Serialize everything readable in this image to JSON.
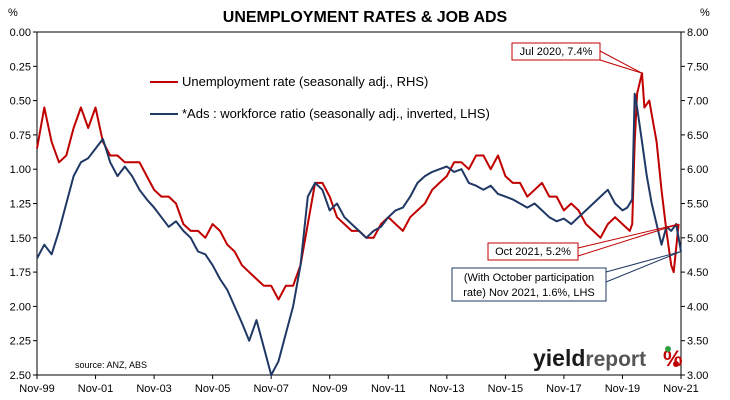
{
  "chart_data": {
    "type": "line",
    "title": "UNEMPLOYMENT RATES & JOB ADS",
    "left_unit": "%",
    "right_unit": "%",
    "x_ticks": [
      "Nov-99",
      "Nov-01",
      "Nov-03",
      "Nov-05",
      "Nov-07",
      "Nov-09",
      "Nov-11",
      "Nov-13",
      "Nov-15",
      "Nov-17",
      "Nov-19",
      "Nov-21"
    ],
    "y_left_ticks": [
      "0.00",
      "0.25",
      "0.50",
      "0.75",
      "1.00",
      "1.25",
      "1.50",
      "1.75",
      "2.00",
      "2.25",
      "2.50"
    ],
    "y_right_ticks": [
      "8.00",
      "7.50",
      "7.00",
      "6.50",
      "6.00",
      "5.50",
      "5.00",
      "4.50",
      "4.00",
      "3.50",
      "3.00"
    ],
    "y_left_range": [
      0.0,
      2.5
    ],
    "y_left_inverted": true,
    "y_right_range": [
      3.0,
      8.0
    ],
    "series": [
      {
        "name": "Unemployment rate (seasonally adj., RHS)",
        "axis": "right",
        "color": "#c00000",
        "points": [
          [
            "1999-11",
            6.3
          ],
          [
            "2000-02",
            6.9
          ],
          [
            "2000-05",
            6.4
          ],
          [
            "2000-08",
            6.1
          ],
          [
            "2000-11",
            6.2
          ],
          [
            "2001-02",
            6.6
          ],
          [
            "2001-05",
            6.9
          ],
          [
            "2001-08",
            6.6
          ],
          [
            "2001-11",
            6.9
          ],
          [
            "2002-02",
            6.4
          ],
          [
            "2002-05",
            6.2
          ],
          [
            "2002-08",
            6.2
          ],
          [
            "2002-11",
            6.1
          ],
          [
            "2003-02",
            6.1
          ],
          [
            "2003-05",
            6.1
          ],
          [
            "2003-08",
            5.9
          ],
          [
            "2003-11",
            5.7
          ],
          [
            "2004-02",
            5.6
          ],
          [
            "2004-05",
            5.6
          ],
          [
            "2004-08",
            5.5
          ],
          [
            "2004-11",
            5.2
          ],
          [
            "2005-02",
            5.1
          ],
          [
            "2005-05",
            5.1
          ],
          [
            "2005-08",
            5.0
          ],
          [
            "2005-11",
            5.2
          ],
          [
            "2006-02",
            5.1
          ],
          [
            "2006-05",
            4.9
          ],
          [
            "2006-08",
            4.8
          ],
          [
            "2006-11",
            4.6
          ],
          [
            "2007-02",
            4.5
          ],
          [
            "2007-05",
            4.4
          ],
          [
            "2007-08",
            4.3
          ],
          [
            "2007-11",
            4.3
          ],
          [
            "2008-02",
            4.1
          ],
          [
            "2008-05",
            4.3
          ],
          [
            "2008-08",
            4.3
          ],
          [
            "2008-11",
            4.6
          ],
          [
            "2009-02",
            5.2
          ],
          [
            "2009-05",
            5.8
          ],
          [
            "2009-08",
            5.8
          ],
          [
            "2009-11",
            5.6
          ],
          [
            "2010-02",
            5.3
          ],
          [
            "2010-05",
            5.2
          ],
          [
            "2010-08",
            5.1
          ],
          [
            "2010-11",
            5.1
          ],
          [
            "2011-02",
            5.0
          ],
          [
            "2011-05",
            5.0
          ],
          [
            "2011-08",
            5.2
          ],
          [
            "2011-11",
            5.3
          ],
          [
            "2012-02",
            5.2
          ],
          [
            "2012-05",
            5.1
          ],
          [
            "2012-08",
            5.3
          ],
          [
            "2012-11",
            5.4
          ],
          [
            "2013-02",
            5.5
          ],
          [
            "2013-05",
            5.7
          ],
          [
            "2013-08",
            5.8
          ],
          [
            "2013-11",
            5.9
          ],
          [
            "2014-02",
            6.1
          ],
          [
            "2014-05",
            6.1
          ],
          [
            "2014-08",
            6.0
          ],
          [
            "2014-11",
            6.2
          ],
          [
            "2015-02",
            6.2
          ],
          [
            "2015-05",
            6.0
          ],
          [
            "2015-08",
            6.2
          ],
          [
            "2015-11",
            5.9
          ],
          [
            "2016-02",
            5.8
          ],
          [
            "2016-05",
            5.8
          ],
          [
            "2016-08",
            5.6
          ],
          [
            "2016-11",
            5.7
          ],
          [
            "2017-02",
            5.8
          ],
          [
            "2017-05",
            5.6
          ],
          [
            "2017-08",
            5.6
          ],
          [
            "2017-11",
            5.4
          ],
          [
            "2018-02",
            5.5
          ],
          [
            "2018-05",
            5.4
          ],
          [
            "2018-08",
            5.2
          ],
          [
            "2018-11",
            5.1
          ],
          [
            "2019-02",
            5.0
          ],
          [
            "2019-05",
            5.2
          ],
          [
            "2019-08",
            5.3
          ],
          [
            "2019-11",
            5.2
          ],
          [
            "2020-02",
            5.1
          ],
          [
            "2020-03",
            5.2
          ],
          [
            "2020-04",
            6.4
          ],
          [
            "2020-05",
            7.1
          ],
          [
            "2020-07",
            7.4
          ],
          [
            "2020-08",
            6.9
          ],
          [
            "2020-10",
            7.0
          ],
          [
            "2020-11",
            6.8
          ],
          [
            "2021-01",
            6.4
          ],
          [
            "2021-03",
            5.7
          ],
          [
            "2021-05",
            5.1
          ],
          [
            "2021-07",
            4.6
          ],
          [
            "2021-08",
            4.5
          ],
          [
            "2021-10",
            5.2
          ]
        ]
      },
      {
        "name": "*Ads : workforce ratio (seasonally adj., inverted, LHS)",
        "axis": "left",
        "color": "#1f3864",
        "points": [
          [
            "1999-11",
            1.65
          ],
          [
            "2000-02",
            1.55
          ],
          [
            "2000-05",
            1.62
          ],
          [
            "2000-08",
            1.45
          ],
          [
            "2000-11",
            1.25
          ],
          [
            "2001-02",
            1.05
          ],
          [
            "2001-05",
            0.95
          ],
          [
            "2001-08",
            0.92
          ],
          [
            "2001-11",
            0.85
          ],
          [
            "2002-02",
            0.78
          ],
          [
            "2002-05",
            0.95
          ],
          [
            "2002-08",
            1.05
          ],
          [
            "2002-11",
            0.98
          ],
          [
            "2003-02",
            1.05
          ],
          [
            "2003-05",
            1.15
          ],
          [
            "2003-08",
            1.22
          ],
          [
            "2003-11",
            1.28
          ],
          [
            "2004-02",
            1.35
          ],
          [
            "2004-05",
            1.42
          ],
          [
            "2004-08",
            1.38
          ],
          [
            "2004-11",
            1.45
          ],
          [
            "2005-02",
            1.5
          ],
          [
            "2005-05",
            1.6
          ],
          [
            "2005-08",
            1.62
          ],
          [
            "2005-11",
            1.7
          ],
          [
            "2006-02",
            1.8
          ],
          [
            "2006-05",
            1.88
          ],
          [
            "2006-08",
            2.0
          ],
          [
            "2006-11",
            2.12
          ],
          [
            "2007-02",
            2.25
          ],
          [
            "2007-05",
            2.1
          ],
          [
            "2007-08",
            2.3
          ],
          [
            "2007-11",
            2.5
          ],
          [
            "2008-02",
            2.4
          ],
          [
            "2008-05",
            2.2
          ],
          [
            "2008-08",
            2.0
          ],
          [
            "2008-11",
            1.7
          ],
          [
            "2009-02",
            1.2
          ],
          [
            "2009-05",
            1.1
          ],
          [
            "2009-08",
            1.15
          ],
          [
            "2009-11",
            1.3
          ],
          [
            "2010-02",
            1.25
          ],
          [
            "2010-05",
            1.35
          ],
          [
            "2010-08",
            1.4
          ],
          [
            "2010-11",
            1.45
          ],
          [
            "2011-02",
            1.5
          ],
          [
            "2011-05",
            1.45
          ],
          [
            "2011-08",
            1.42
          ],
          [
            "2011-11",
            1.35
          ],
          [
            "2012-02",
            1.3
          ],
          [
            "2012-05",
            1.28
          ],
          [
            "2012-08",
            1.2
          ],
          [
            "2012-11",
            1.1
          ],
          [
            "2013-02",
            1.05
          ],
          [
            "2013-05",
            1.02
          ],
          [
            "2013-08",
            1.0
          ],
          [
            "2013-11",
            0.98
          ],
          [
            "2014-02",
            1.02
          ],
          [
            "2014-05",
            1.0
          ],
          [
            "2014-08",
            1.1
          ],
          [
            "2014-11",
            1.12
          ],
          [
            "2015-02",
            1.15
          ],
          [
            "2015-05",
            1.12
          ],
          [
            "2015-08",
            1.18
          ],
          [
            "2015-11",
            1.2
          ],
          [
            "2016-02",
            1.22
          ],
          [
            "2016-05",
            1.25
          ],
          [
            "2016-08",
            1.28
          ],
          [
            "2016-11",
            1.25
          ],
          [
            "2017-02",
            1.3
          ],
          [
            "2017-05",
            1.35
          ],
          [
            "2017-08",
            1.38
          ],
          [
            "2017-11",
            1.36
          ],
          [
            "2018-02",
            1.4
          ],
          [
            "2018-05",
            1.35
          ],
          [
            "2018-08",
            1.3
          ],
          [
            "2018-11",
            1.25
          ],
          [
            "2019-02",
            1.2
          ],
          [
            "2019-05",
            1.15
          ],
          [
            "2019-08",
            1.25
          ],
          [
            "2019-11",
            1.3
          ],
          [
            "2020-01",
            1.28
          ],
          [
            "2020-03",
            1.22
          ],
          [
            "2020-04",
            0.45
          ],
          [
            "2020-05",
            0.55
          ],
          [
            "2020-07",
            0.8
          ],
          [
            "2020-09",
            1.05
          ],
          [
            "2020-11",
            1.25
          ],
          [
            "2021-01",
            1.4
          ],
          [
            "2021-03",
            1.55
          ],
          [
            "2021-05",
            1.42
          ],
          [
            "2021-07",
            1.45
          ],
          [
            "2021-09",
            1.4
          ],
          [
            "2021-10",
            1.5
          ],
          [
            "2021-11",
            1.6
          ]
        ]
      }
    ],
    "annotations": [
      {
        "text": "Jul 2020, 7.4%",
        "axis": "right",
        "x": "2020-07",
        "y": 7.4
      },
      {
        "text": "Oct 2021, 5.2%",
        "axis": "right",
        "x": "2021-10",
        "y": 5.2
      },
      {
        "lines": [
          "(With October participation",
          "rate) Nov 2021, 1.6%, LHS"
        ],
        "axis": "left",
        "x": "2021-11",
        "y": 1.6
      }
    ],
    "source": "source: ANZ, ABS",
    "logo": {
      "dark": "yield",
      "light": "report",
      "symbol": "%"
    },
    "grid": false,
    "legend_position": "top-center"
  }
}
